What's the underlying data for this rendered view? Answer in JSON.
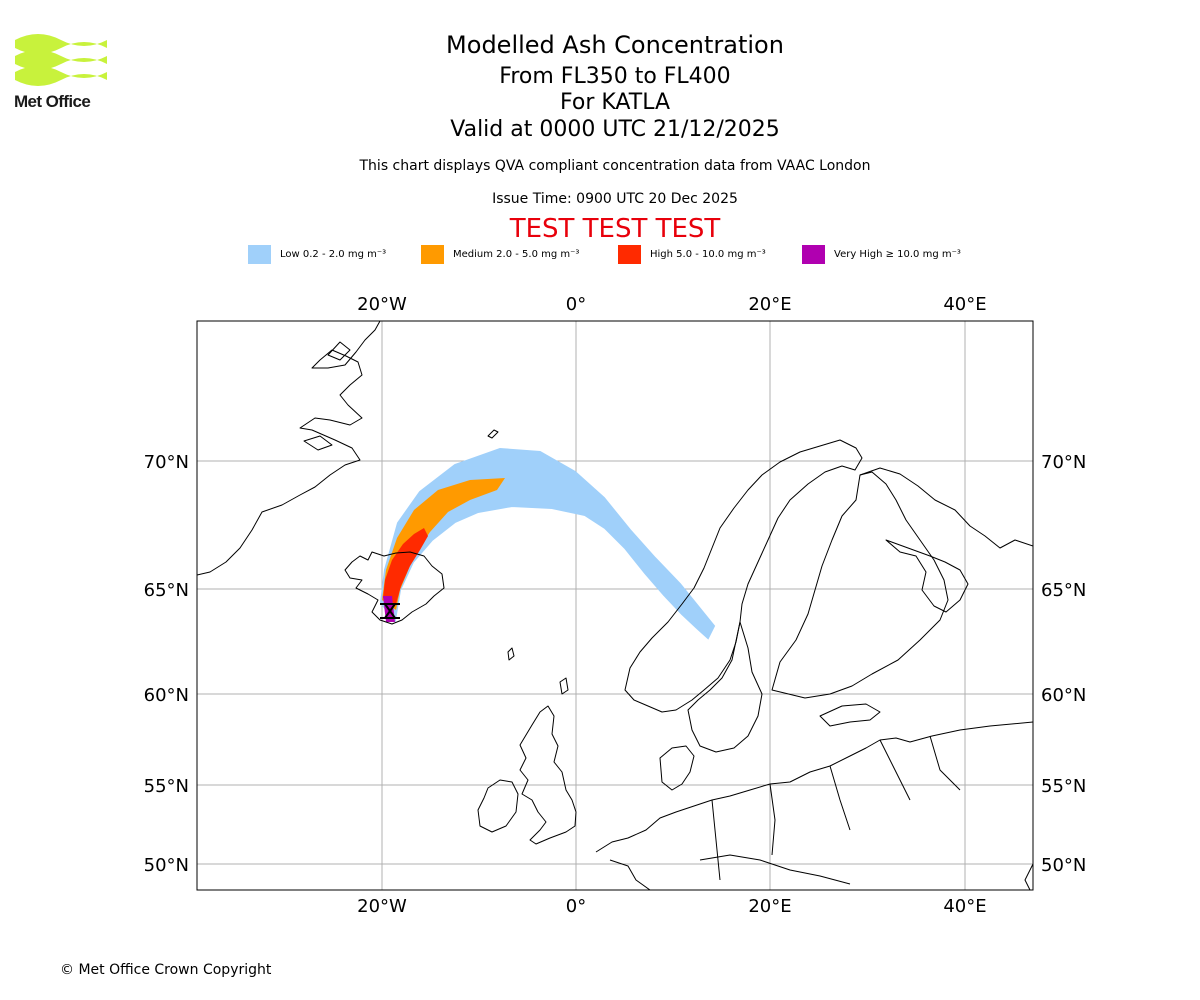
{
  "logo": {
    "text": "Met Office",
    "stripe_color": "#c8f23c"
  },
  "title": {
    "main": "Modelled Ash Concentration",
    "levels": "From FL350 to FL400",
    "volcano": "For KATLA",
    "valid": "Valid at 0000 UTC 21/12/2025"
  },
  "subtitle": "This chart displays QVA compliant concentration data from VAAC London",
  "issue_time": "Issue Time: 0900 UTC 20 Dec 2025",
  "test_banner": "TEST TEST TEST",
  "legend": [
    {
      "label": "Low 0.2 - 2.0 mg m⁻³",
      "color": "#a0d0fa"
    },
    {
      "label": "Medium 2.0 - 5.0 mg m⁻³",
      "color": "#ff9a00"
    },
    {
      "label": "High 5.0 - 10.0 mg m⁻³",
      "color": "#ff2a00"
    },
    {
      "label": "Very High ≥ 10.0 mg m⁻³",
      "color": "#b000b0"
    }
  ],
  "map": {
    "lon_labels": [
      "20°W",
      "0°",
      "20°E",
      "40°E"
    ],
    "lat_labels": [
      "70°N",
      "65°N",
      "60°N",
      "55°N",
      "50°N"
    ],
    "volcano_marker": "volcano-icon"
  },
  "footer": "© Met Office Crown Copyright"
}
